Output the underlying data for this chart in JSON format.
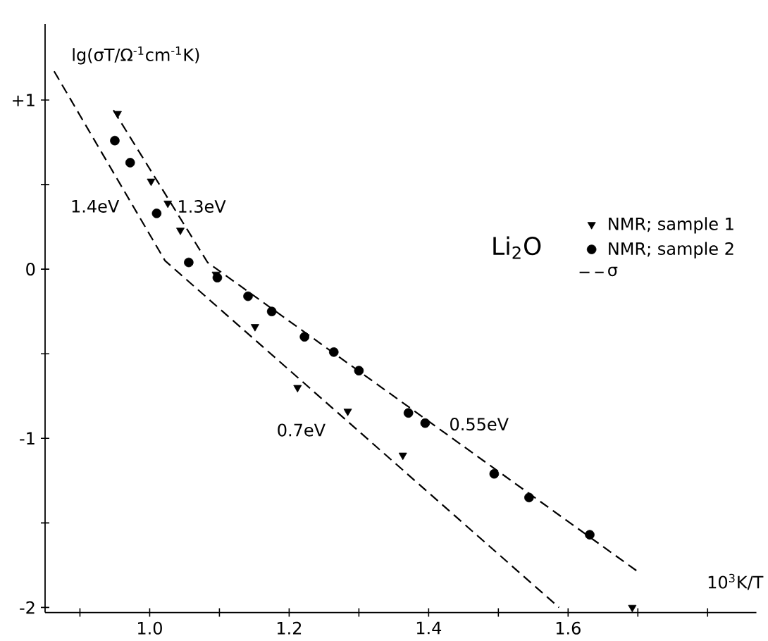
{
  "chart_data": {
    "type": "scatter",
    "title": "Li$_{2}$O",
    "xlabel": "10$^{3}$K/T",
    "ylabel": "lg(σT/Ω$^{-1}$cm$^{-1}$K)",
    "xlim": [
      0.85,
      1.87
    ],
    "ylim": [
      -2.03,
      1.45
    ],
    "xticks": [
      {
        "value": 0.9,
        "label": null
      },
      {
        "value": 1.0,
        "label": "1.0"
      },
      {
        "value": 1.1,
        "label": null
      },
      {
        "value": 1.2,
        "label": "1.2"
      },
      {
        "value": 1.3,
        "label": null
      },
      {
        "value": 1.4,
        "label": "1.4"
      },
      {
        "value": 1.5,
        "label": null
      },
      {
        "value": 1.6,
        "label": "1.6"
      },
      {
        "value": 1.7,
        "label": null
      },
      {
        "value": 1.8,
        "label": null
      }
    ],
    "yticks": [
      {
        "value": 1,
        "label": "+1"
      },
      {
        "value": 0.5,
        "label": null
      },
      0,
      {
        "value": -0.5,
        "label": null
      },
      -1,
      {
        "value": -1.5,
        "label": null
      },
      -2
    ],
    "legend": "right",
    "grid": false,
    "series": [
      {
        "name": "NMR; sample 1",
        "marker": "triangle",
        "color": "#000000",
        "x": [
          0.954,
          1.002,
          1.026,
          1.044,
          1.095,
          1.151,
          1.212,
          1.284,
          1.363,
          1.692
        ],
        "values": [
          0.92,
          0.52,
          0.39,
          0.23,
          -0.03,
          -0.34,
          -0.7,
          -0.84,
          -1.1,
          -2.0
        ]
      },
      {
        "name": "NMR; sample 2",
        "marker": "circle",
        "color": "#000000",
        "x": [
          0.95,
          0.972,
          1.01,
          1.056,
          1.097,
          1.141,
          1.175,
          1.222,
          1.264,
          1.3,
          1.371,
          1.395,
          1.494,
          1.544,
          1.631
        ],
        "values": [
          0.76,
          0.63,
          0.33,
          0.04,
          -0.05,
          -0.16,
          -0.25,
          -0.4,
          -0.49,
          -0.6,
          -0.85,
          -0.91,
          -1.21,
          -1.35,
          -1.57
        ]
      },
      {
        "type": "line",
        "line_style": "dashed",
        "color": "#000000",
        "x": [
          0.948,
          1.083,
          1.704
        ],
        "values": [
          0.94,
          0.04,
          -1.8
        ]
      },
      {
        "name": "σ",
        "type": "line",
        "line_style": "dashed",
        "color": "#000000",
        "x": [
          0.863,
          1.022,
          1.587
        ],
        "values": [
          1.17,
          0.05,
          -2.0
        ]
      }
    ],
    "annotations": [
      "1.4eV",
      "1.3eV",
      "0.7eV",
      "0.55eV"
    ]
  }
}
